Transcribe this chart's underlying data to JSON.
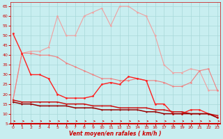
{
  "x": [
    0,
    1,
    2,
    3,
    4,
    5,
    6,
    7,
    8,
    9,
    10,
    11,
    12,
    13,
    14,
    15,
    16,
    17,
    18,
    19,
    20,
    21,
    22,
    23
  ],
  "line_rafales_max": [
    17,
    41,
    42,
    42,
    44,
    60,
    50,
    50,
    60,
    62,
    64,
    55,
    65,
    65,
    62,
    60,
    50,
    35,
    31,
    31,
    33,
    32,
    22,
    22
  ],
  "line_rafales_min": [
    17,
    41,
    41,
    40,
    40,
    39,
    36,
    34,
    32,
    30,
    28,
    28,
    27,
    27,
    28,
    27,
    27,
    26,
    24,
    24,
    26,
    32,
    33,
    22
  ],
  "line_vent_max": [
    51,
    41,
    30,
    30,
    28,
    20,
    18,
    18,
    18,
    19,
    25,
    26,
    25,
    29,
    28,
    27,
    15,
    15,
    10,
    10,
    12,
    12,
    10,
    8
  ],
  "line_vent_flat1": [
    17,
    16,
    16,
    16,
    16,
    16,
    15,
    15,
    15,
    14,
    14,
    14,
    13,
    13,
    13,
    13,
    12,
    12,
    11,
    11,
    10,
    10,
    10,
    9
  ],
  "line_vent_flat2": [
    16,
    15,
    15,
    14,
    14,
    14,
    14,
    13,
    13,
    13,
    12,
    12,
    12,
    12,
    12,
    11,
    11,
    10,
    10,
    10,
    10,
    10,
    10,
    8
  ],
  "color_light_pink": "#F0A0A0",
  "color_med_pink": "#F08080",
  "color_bright_red": "#FF2020",
  "color_dark_red1": "#CC1010",
  "color_dark_red2": "#990000",
  "bg_color": "#C8EEF0",
  "grid_color": "#A8D8D8",
  "xlabel": "Vent moyen/en rafales ( km/h )",
  "ylim": [
    5,
    67
  ],
  "xlim": [
    -0.3,
    23.3
  ],
  "yticks": [
    5,
    10,
    15,
    20,
    25,
    30,
    35,
    40,
    45,
    50,
    55,
    60,
    65
  ],
  "xticks": [
    0,
    1,
    2,
    3,
    4,
    5,
    6,
    7,
    8,
    9,
    10,
    11,
    12,
    13,
    14,
    15,
    16,
    17,
    18,
    19,
    20,
    21,
    22,
    23
  ]
}
